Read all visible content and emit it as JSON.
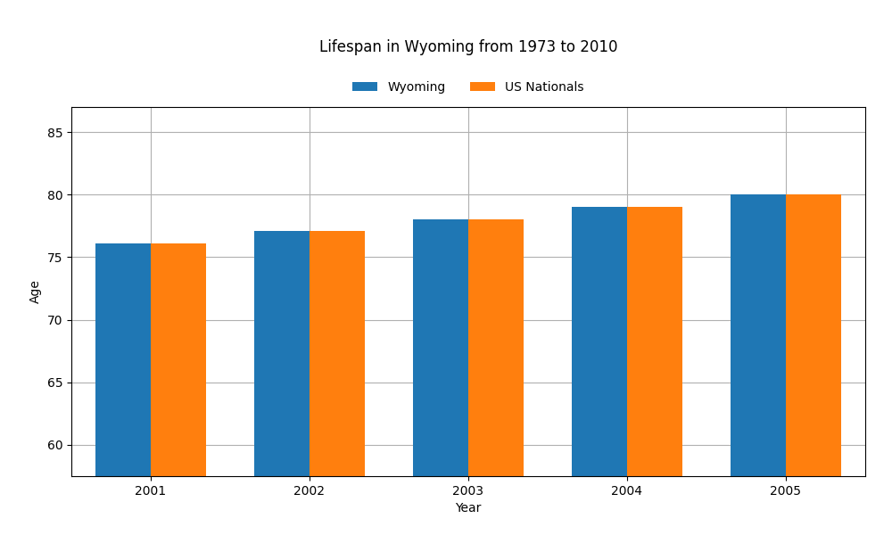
{
  "chart_data": {
    "type": "bar",
    "title": "Lifespan in Wyoming from 1973 to 2010",
    "x_label": "Year",
    "y_label": "Age",
    "categories": [
      "2001",
      "2002",
      "2003",
      "2004",
      "2005"
    ],
    "series": [
      {
        "name": "Wyoming",
        "values": [
          76.1,
          77.1,
          78.0,
          79.0,
          80.0
        ]
      },
      {
        "name": "US Nationals",
        "values": [
          76.1,
          77.1,
          78.0,
          79.0,
          80.0
        ]
      }
    ],
    "ylim": [
      57.5,
      87
    ],
    "yticks": [
      60,
      65,
      70,
      75,
      80,
      85
    ],
    "grid": true,
    "legend": "upper center"
  }
}
